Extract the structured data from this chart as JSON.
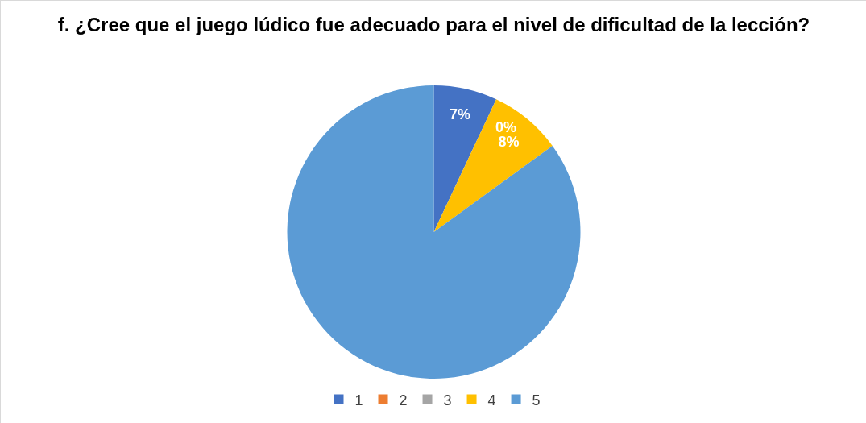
{
  "chart_data": {
    "type": "pie",
    "title": "f. ¿Cree que el juego lúdico fue adecuado para el nivel de dificultad de la lección?",
    "categories": [
      "1",
      "2",
      "3",
      "4",
      "5"
    ],
    "values": [
      7,
      0,
      0,
      8,
      85
    ],
    "colors": [
      "#4472c4",
      "#ed7d31",
      "#a5a5a5",
      "#ffc000",
      "#5b9bd5"
    ],
    "value_labels": [
      "7%",
      "0%",
      null,
      "8%",
      null
    ],
    "legend": "bottom"
  }
}
